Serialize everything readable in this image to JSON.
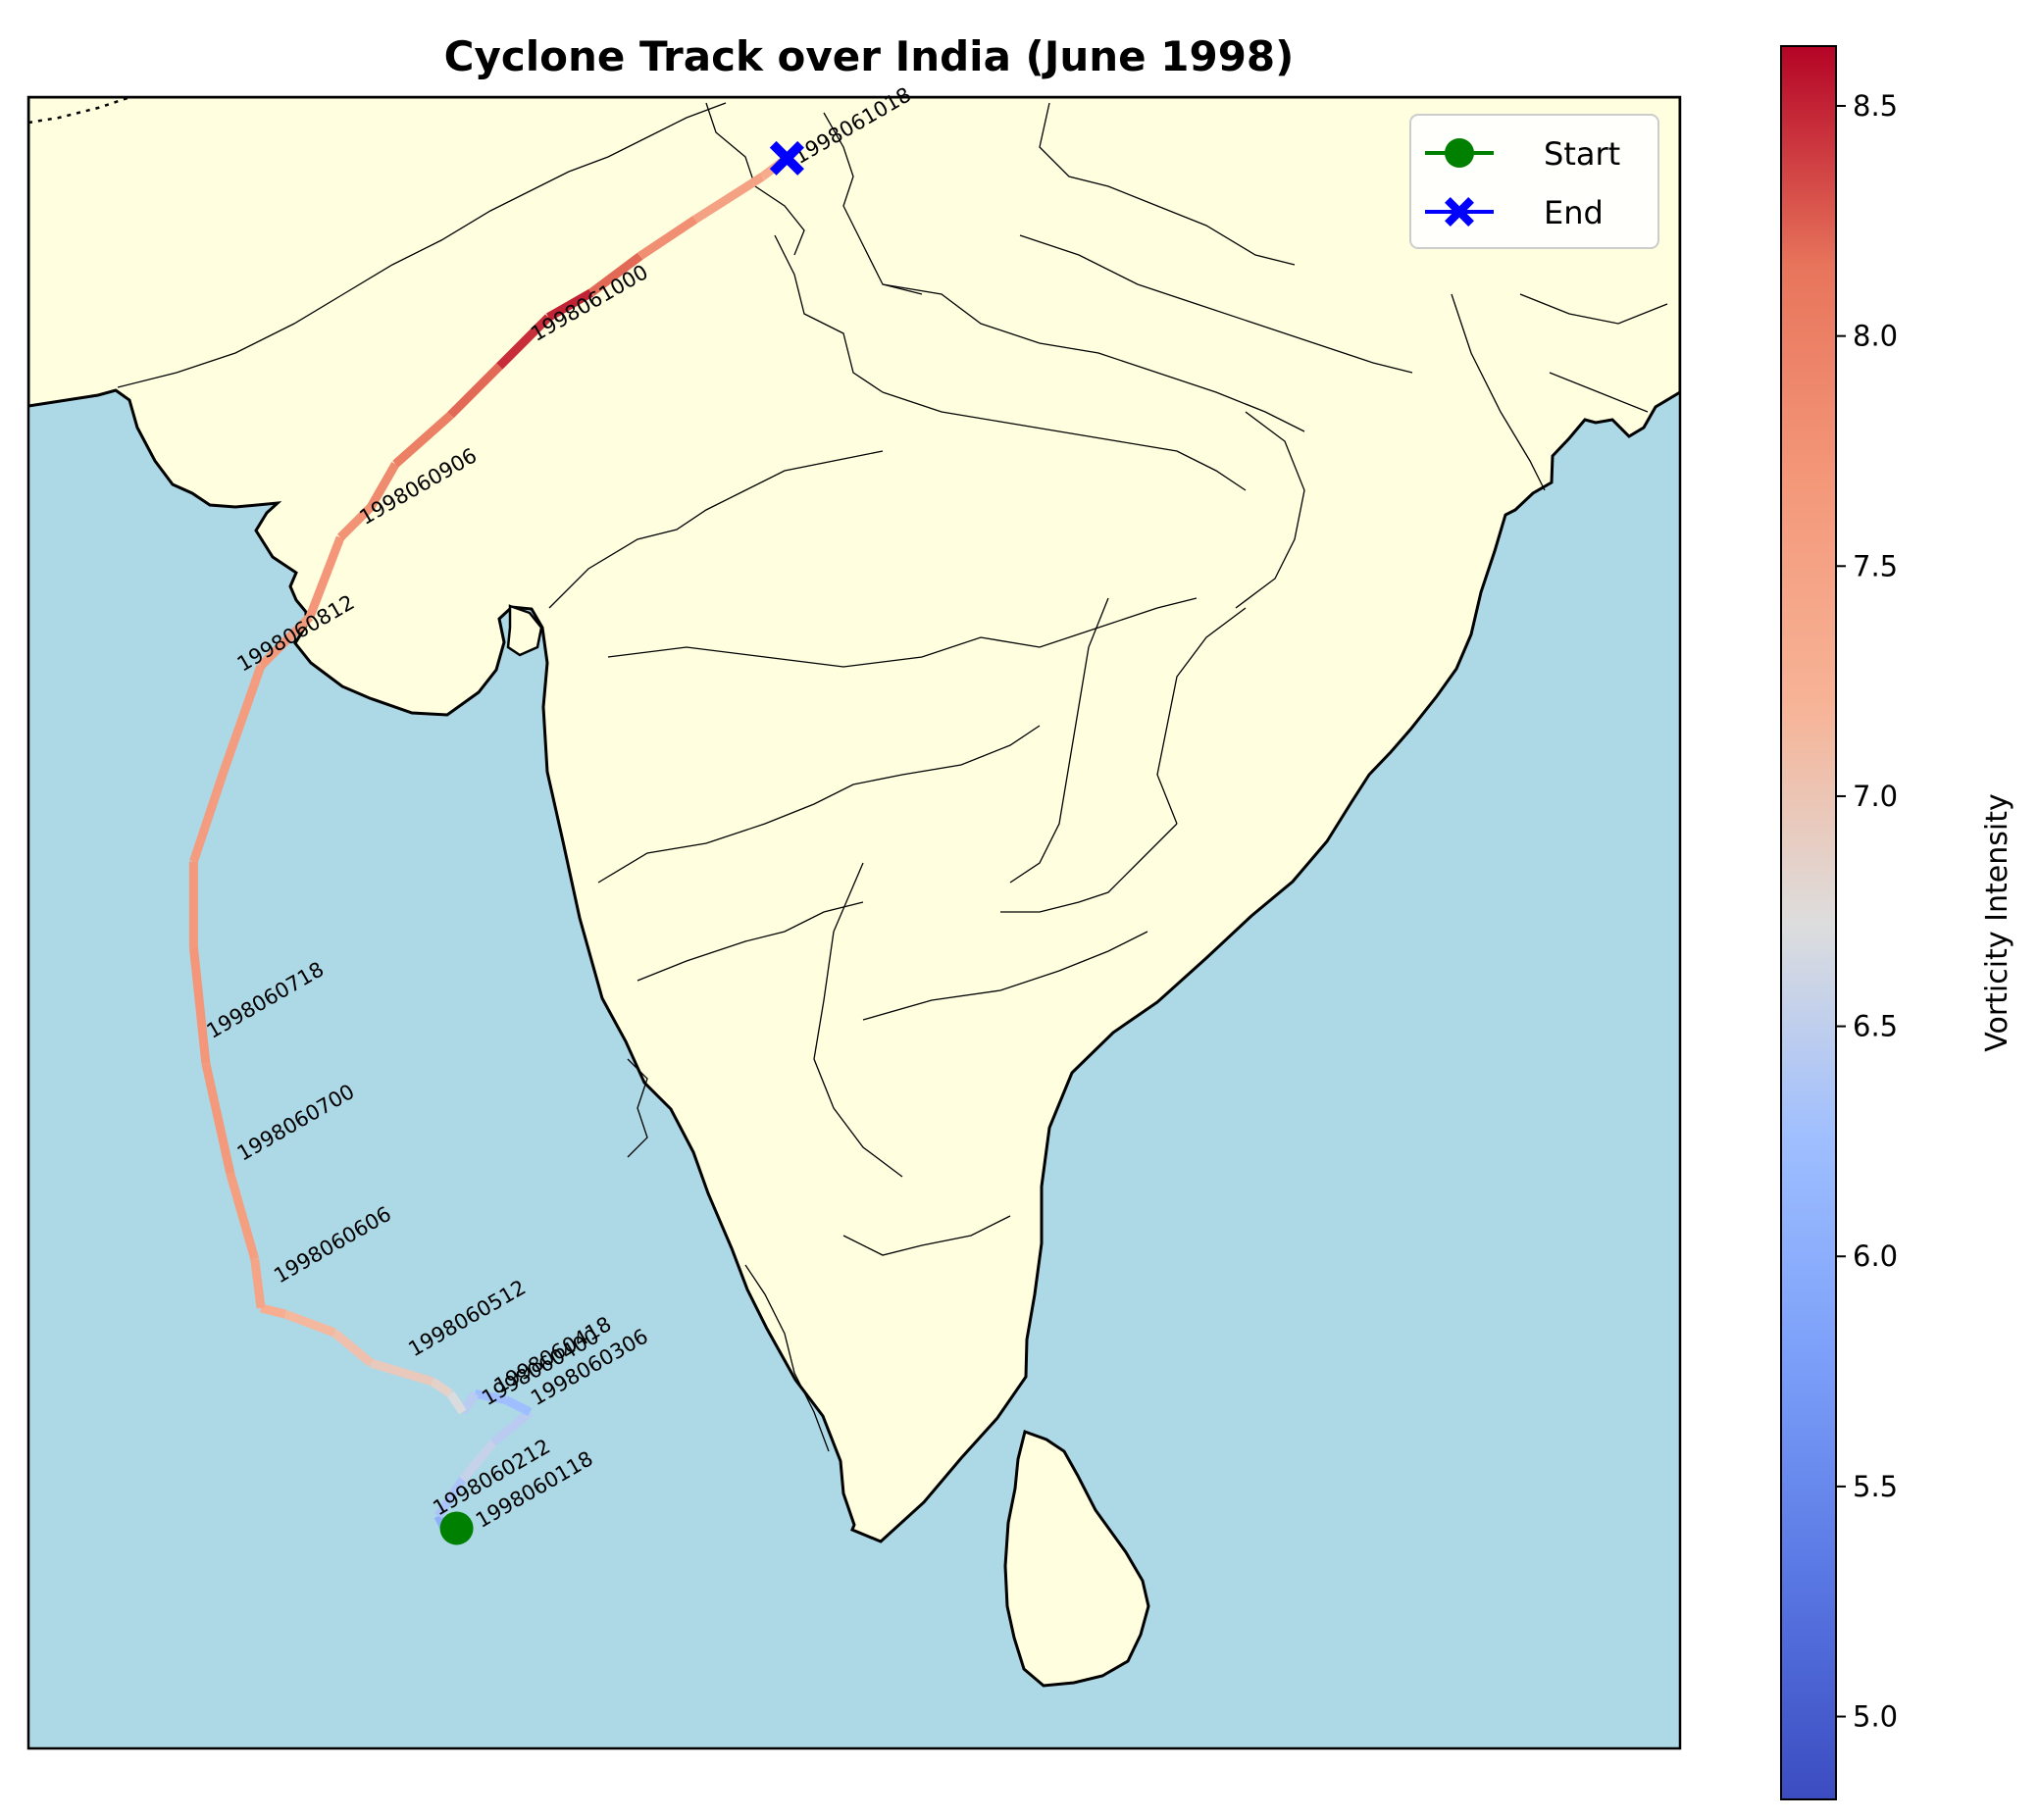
{
  "title": "Cyclone Track over India (June 1998)",
  "colors": {
    "ocean": "#add8e6",
    "land": "#ffffe0",
    "start_marker": "#008000",
    "end_marker": "#0000ff"
  },
  "legend": {
    "start_label": "Start",
    "end_label": "End",
    "placement": "top-right"
  },
  "colorbar": {
    "label": "Vorticity Intensity",
    "colormap": "coolwarm",
    "range": [
      4.82,
      8.63
    ],
    "ticks": [
      "5.0",
      "5.5",
      "6.0",
      "6.5",
      "7.0",
      "7.5",
      "8.0",
      "8.5"
    ]
  },
  "chart_data": {
    "type": "line",
    "x_unit": "degrees east longitude",
    "y_unit": "degrees north latitude",
    "extent": {
      "lon": [
        63,
        90
      ],
      "lat": [
        5,
        32
      ]
    },
    "track": [
      {
        "lon": 70.0,
        "lat": 8.6,
        "vort": 5.7
      },
      {
        "lon": 69.8,
        "lat": 8.6,
        "vort": 5.9
      },
      {
        "lon": 69.7,
        "lat": 8.8,
        "vort": 6.2
      },
      {
        "lon": 70.1,
        "lat": 9.4,
        "vort": 6.5
      },
      {
        "lon": 70.6,
        "lat": 10.0,
        "vort": 6.6
      },
      {
        "lon": 71.2,
        "lat": 10.5,
        "vort": 6.3
      },
      {
        "lon": 70.8,
        "lat": 10.7,
        "vort": 6.2
      },
      {
        "lon": 70.3,
        "lat": 10.8,
        "vort": 6.3
      },
      {
        "lon": 70.1,
        "lat": 10.5,
        "vort": 6.6
      },
      {
        "lon": 69.9,
        "lat": 10.8,
        "vort": 6.8
      },
      {
        "lon": 69.6,
        "lat": 11.0,
        "vort": 6.9
      },
      {
        "lon": 68.6,
        "lat": 11.3,
        "vort": 7.0
      },
      {
        "lon": 68.0,
        "lat": 11.8,
        "vort": 7.1
      },
      {
        "lon": 67.2,
        "lat": 12.1,
        "vort": 7.2
      },
      {
        "lon": 66.8,
        "lat": 12.2,
        "vort": 7.4
      },
      {
        "lon": 66.7,
        "lat": 13.0,
        "vort": 7.5
      },
      {
        "lon": 66.3,
        "lat": 14.4,
        "vort": 7.6
      },
      {
        "lon": 65.9,
        "lat": 16.2,
        "vort": 7.7
      },
      {
        "lon": 65.7,
        "lat": 18.1,
        "vort": 7.7
      },
      {
        "lon": 65.7,
        "lat": 19.5,
        "vort": 7.6
      },
      {
        "lon": 66.2,
        "lat": 21.0,
        "vort": 7.6
      },
      {
        "lon": 66.8,
        "lat": 22.7,
        "vort": 7.6
      },
      {
        "lon": 67.6,
        "lat": 23.5,
        "vort": 7.7
      },
      {
        "lon": 68.1,
        "lat": 24.8,
        "vort": 7.7
      },
      {
        "lon": 68.6,
        "lat": 25.3,
        "vort": 7.8
      },
      {
        "lon": 69.0,
        "lat": 26.0,
        "vort": 7.9
      },
      {
        "lon": 69.9,
        "lat": 26.8,
        "vort": 8.1
      },
      {
        "lon": 70.7,
        "lat": 27.6,
        "vort": 8.3
      },
      {
        "lon": 71.5,
        "lat": 28.4,
        "vort": 8.6
      },
      {
        "lon": 72.2,
        "lat": 28.8,
        "vort": 8.4
      },
      {
        "lon": 73.0,
        "lat": 29.4,
        "vort": 8.0
      },
      {
        "lon": 73.9,
        "lat": 30.0,
        "vort": 7.6
      },
      {
        "lon": 75.0,
        "lat": 30.7,
        "vort": 7.4
      },
      {
        "lon": 75.4,
        "lat": 31.0,
        "vort": 7.3
      }
    ],
    "timestamps": [
      {
        "text": "1998060118",
        "lon": 70.4,
        "lat": 8.6
      },
      {
        "text": "1998060212",
        "lon": 69.7,
        "lat": 8.8
      },
      {
        "text": "1998060306",
        "lon": 71.3,
        "lat": 10.6
      },
      {
        "text": "1998060400",
        "lon": 70.5,
        "lat": 10.6
      },
      {
        "text": "1998060418",
        "lon": 70.7,
        "lat": 10.8
      },
      {
        "text": "1998060512",
        "lon": 69.3,
        "lat": 11.4
      },
      {
        "text": "1998060606",
        "lon": 67.1,
        "lat": 12.6
      },
      {
        "text": "1998060700",
        "lon": 66.5,
        "lat": 14.6
      },
      {
        "text": "1998060718",
        "lon": 66.0,
        "lat": 16.6
      },
      {
        "text": "1998060812",
        "lon": 66.5,
        "lat": 22.6
      },
      {
        "text": "1998060906",
        "lon": 68.5,
        "lat": 25.0
      },
      {
        "text": "1998061000",
        "lon": 71.3,
        "lat": 28.0
      },
      {
        "text": "1998061018",
        "lon": 75.6,
        "lat": 30.9
      }
    ],
    "start": {
      "lon": 70.0,
      "lat": 8.6
    },
    "end": {
      "lon": 75.4,
      "lat": 31.0
    }
  }
}
